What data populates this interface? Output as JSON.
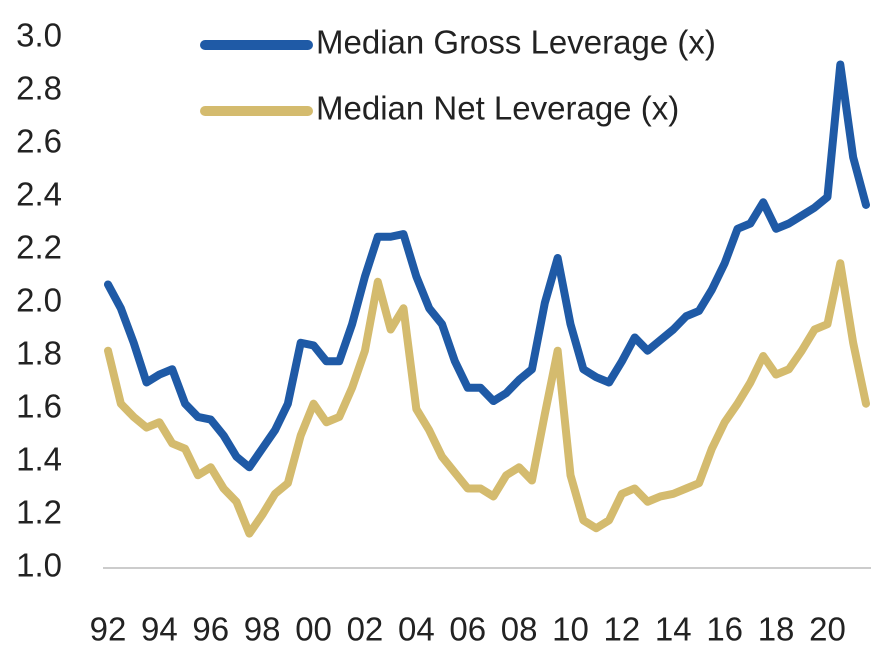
{
  "chart_data": {
    "type": "line",
    "categories": [
      "92",
      null,
      null,
      null,
      "94",
      null,
      null,
      null,
      "96",
      null,
      null,
      null,
      "98",
      null,
      null,
      null,
      "00",
      null,
      null,
      null,
      "02",
      null,
      null,
      null,
      "04",
      null,
      null,
      null,
      "06",
      null,
      null,
      null,
      "08",
      null,
      null,
      null,
      "10",
      null,
      null,
      null,
      "12",
      null,
      null,
      null,
      "14",
      null,
      null,
      null,
      "16",
      null,
      null,
      null,
      "18",
      null,
      null,
      null,
      "20",
      null,
      null,
      null
    ],
    "series": [
      {
        "name": "Median Gross Leverage (x)",
        "color": "#1f5aa6",
        "values": [
          2.07,
          1.98,
          1.85,
          1.7,
          1.73,
          1.75,
          1.62,
          1.57,
          1.56,
          1.5,
          1.42,
          1.38,
          1.45,
          1.52,
          1.62,
          1.85,
          1.84,
          1.78,
          1.78,
          1.92,
          2.1,
          2.25,
          2.25,
          2.26,
          2.1,
          1.98,
          1.92,
          1.78,
          1.68,
          1.68,
          1.63,
          1.66,
          1.71,
          1.75,
          2.0,
          2.17,
          1.92,
          1.75,
          1.72,
          1.7,
          1.78,
          1.87,
          1.82,
          1.86,
          1.9,
          1.95,
          1.97,
          2.05,
          2.15,
          2.28,
          2.3,
          2.38,
          2.28,
          2.3,
          2.33,
          2.36,
          2.4,
          2.9,
          2.55,
          2.37
        ]
      },
      {
        "name": "Median Net Leverage (x)",
        "color": "#d4bb6e",
        "values": [
          1.82,
          1.62,
          1.57,
          1.53,
          1.55,
          1.47,
          1.45,
          1.35,
          1.38,
          1.3,
          1.25,
          1.13,
          1.2,
          1.28,
          1.32,
          1.5,
          1.62,
          1.55,
          1.57,
          1.68,
          1.82,
          2.08,
          1.9,
          1.98,
          1.6,
          1.52,
          1.42,
          1.36,
          1.3,
          1.3,
          1.27,
          1.35,
          1.38,
          1.33,
          1.58,
          1.82,
          1.35,
          1.18,
          1.15,
          1.18,
          1.28,
          1.3,
          1.25,
          1.27,
          1.28,
          1.3,
          1.32,
          1.45,
          1.55,
          1.62,
          1.7,
          1.8,
          1.73,
          1.75,
          1.82,
          1.9,
          1.92,
          2.15,
          1.85,
          1.62
        ]
      }
    ],
    "ylim": [
      1.0,
      3.0
    ],
    "yticks": [
      {
        "value": 1.0,
        "label": "1.0"
      },
      1.2,
      1.4,
      1.6,
      1.8,
      {
        "value": 2.0,
        "label": "2.0"
      },
      2.2,
      2.4,
      2.6,
      2.8,
      {
        "value": 3.0,
        "label": "3.0"
      }
    ],
    "grid": false,
    "legend": "top"
  }
}
